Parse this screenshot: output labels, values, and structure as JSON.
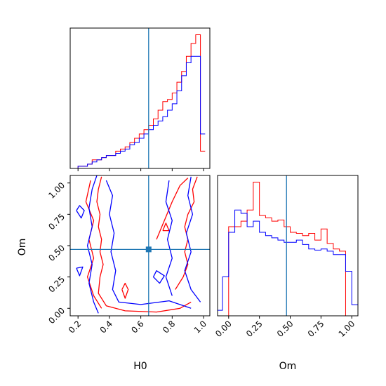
{
  "chart_data": [
    {
      "type": "histogram",
      "panel": "H0 marginal",
      "xlim": [
        0.15,
        1.04
      ],
      "truth_line": 0.65,
      "series": [
        {
          "color": "#ff0000",
          "edges": [
            0.08,
            0.11,
            0.14,
            0.17,
            0.2,
            0.23,
            0.26,
            0.29,
            0.32,
            0.35,
            0.38,
            0.41,
            0.44,
            0.47,
            0.5,
            0.53,
            0.56,
            0.59,
            0.62,
            0.65,
            0.68,
            0.71,
            0.74,
            0.77,
            0.8,
            0.83,
            0.86,
            0.89,
            0.92,
            0.95,
            0.98,
            1.01
          ],
          "values": [
            0,
            0,
            0,
            0,
            1,
            1,
            2,
            4,
            4,
            5,
            6,
            6,
            8,
            9,
            10,
            12,
            14,
            16,
            18,
            20,
            23,
            27,
            31,
            32,
            35,
            40,
            45,
            52,
            58,
            62,
            8
          ]
        },
        {
          "color": "#0000ff",
          "edges": [
            0.08,
            0.11,
            0.14,
            0.17,
            0.2,
            0.23,
            0.26,
            0.29,
            0.32,
            0.35,
            0.38,
            0.41,
            0.44,
            0.47,
            0.5,
            0.53,
            0.56,
            0.59,
            0.62,
            0.65,
            0.68,
            0.71,
            0.74,
            0.77,
            0.8,
            0.83,
            0.86,
            0.89,
            0.92,
            0.95,
            0.98,
            1.01
          ],
          "values": [
            0,
            0,
            0,
            0,
            1,
            1,
            2,
            3,
            4,
            5,
            6,
            6,
            7,
            8,
            9,
            11,
            12,
            14,
            16,
            18,
            20,
            22,
            24,
            27,
            30,
            36,
            43,
            49,
            52,
            52,
            16
          ]
        }
      ]
    },
    {
      "type": "contour",
      "panel": "H0 vs Om joint",
      "xlabel": "H0",
      "ylabel": "Om",
      "xlim": [
        0.15,
        1.04
      ],
      "ylim": [
        -0.06,
        1.06
      ],
      "xticks": [
        "0.2",
        "0.4",
        "0.6",
        "0.8",
        "1.0"
      ],
      "yticks": [
        "0.00",
        "0.25",
        "0.50",
        "0.75",
        "1.00"
      ],
      "truth": [
        0.65,
        0.47
      ],
      "series": [
        {
          "color": "#ff0000",
          "contours": [
            [
              [
                0.35,
                1.05
              ],
              [
                0.33,
                0.95
              ],
              [
                0.32,
                0.85
              ],
              [
                0.34,
                0.75
              ],
              [
                0.33,
                0.65
              ],
              [
                0.35,
                0.55
              ],
              [
                0.34,
                0.45
              ],
              [
                0.36,
                0.35
              ],
              [
                0.34,
                0.25
              ],
              [
                0.33,
                0.12
              ],
              [
                0.38,
                0.02
              ],
              [
                0.5,
                -0.02
              ],
              [
                0.7,
                -0.03
              ],
              [
                0.85,
                0.0
              ],
              [
                0.92,
                0.05
              ]
            ],
            [
              [
                0.96,
                1.05
              ],
              [
                0.93,
                0.95
              ],
              [
                0.94,
                0.85
              ],
              [
                0.9,
                0.75
              ],
              [
                0.88,
                0.65
              ],
              [
                0.9,
                0.55
              ],
              [
                0.88,
                0.45
              ],
              [
                0.9,
                0.35
              ],
              [
                0.87,
                0.25
              ],
              [
                0.82,
                0.15
              ]
            ],
            [
              [
                0.28,
                1.02
              ],
              [
                0.25,
                0.85
              ],
              [
                0.3,
                0.7
              ],
              [
                0.27,
                0.55
              ],
              [
                0.3,
                0.4
              ],
              [
                0.26,
                0.25
              ],
              [
                0.3,
                0.1
              ],
              [
                0.35,
                0.0
              ]
            ],
            [
              [
                0.7,
                0.55
              ],
              [
                0.75,
                0.7
              ],
              [
                0.8,
                0.85
              ],
              [
                0.85,
                0.98
              ],
              [
                0.9,
                1.04
              ]
            ],
            [
              [
                0.48,
                0.15
              ],
              [
                0.5,
                0.08
              ],
              [
                0.52,
                0.15
              ],
              [
                0.5,
                0.2
              ],
              [
                0.48,
                0.15
              ]
            ],
            [
              [
                0.74,
                0.62
              ],
              [
                0.76,
                0.68
              ],
              [
                0.78,
                0.62
              ],
              [
                0.74,
                0.62
              ]
            ]
          ]
        },
        {
          "color": "#0000ff",
          "contours": [
            [
              [
                0.32,
                1.06
              ],
              [
                0.29,
                0.95
              ],
              [
                0.27,
                0.8
              ],
              [
                0.29,
                0.65
              ],
              [
                0.26,
                0.5
              ],
              [
                0.29,
                0.35
              ],
              [
                0.27,
                0.2
              ],
              [
                0.3,
                0.05
              ],
              [
                0.33,
                -0.04
              ]
            ],
            [
              [
                0.38,
                1.02
              ],
              [
                0.42,
                0.9
              ],
              [
                0.4,
                0.75
              ],
              [
                0.43,
                0.6
              ],
              [
                0.41,
                0.45
              ],
              [
                0.44,
                0.3
              ],
              [
                0.42,
                0.15
              ],
              [
                0.46,
                0.05
              ],
              [
                0.6,
                0.03
              ],
              [
                0.78,
                0.06
              ],
              [
                0.92,
                0.0
              ]
            ],
            [
              [
                0.92,
                1.05
              ],
              [
                0.9,
                0.9
              ],
              [
                0.93,
                0.75
              ],
              [
                0.89,
                0.6
              ],
              [
                0.92,
                0.45
              ],
              [
                0.88,
                0.3
              ],
              [
                0.92,
                0.15
              ],
              [
                0.98,
                0.05
              ]
            ],
            [
              [
                0.78,
                1.02
              ],
              [
                0.76,
                0.85
              ],
              [
                0.8,
                0.7
              ],
              [
                0.77,
                0.55
              ],
              [
                0.8,
                0.4
              ],
              [
                0.76,
                0.25
              ],
              [
                0.8,
                0.1
              ]
            ],
            [
              [
                0.19,
                0.78
              ],
              [
                0.22,
                0.72
              ],
              [
                0.24,
                0.78
              ],
              [
                0.21,
                0.82
              ],
              [
                0.19,
                0.78
              ]
            ],
            [
              [
                0.68,
                0.25
              ],
              [
                0.72,
                0.2
              ],
              [
                0.75,
                0.26
              ],
              [
                0.7,
                0.3
              ],
              [
                0.68,
                0.25
              ]
            ],
            [
              [
                0.19,
                0.32
              ],
              [
                0.21,
                0.26
              ],
              [
                0.23,
                0.33
              ],
              [
                0.19,
                0.32
              ]
            ]
          ]
        }
      ]
    },
    {
      "type": "histogram",
      "panel": "Om marginal",
      "xlabel": "Om",
      "xlim": [
        -0.09,
        1.05
      ],
      "xticks": [
        "0.00",
        "0.25",
        "0.50",
        "0.75",
        "1.00"
      ],
      "truth_line": 0.47,
      "series": [
        {
          "color": "#ff0000",
          "edges": [
            -0.1,
            -0.05,
            0.0,
            0.05,
            0.1,
            0.15,
            0.2,
            0.25,
            0.3,
            0.35,
            0.4,
            0.45,
            0.5,
            0.55,
            0.6,
            0.65,
            0.7,
            0.75,
            0.8,
            0.85,
            0.9,
            0.95,
            1.0,
            1.05
          ],
          "values": [
            0,
            0,
            80,
            80,
            85,
            95,
            120,
            90,
            88,
            85,
            86,
            80,
            75,
            74,
            72,
            74,
            68,
            78,
            65,
            60,
            58,
            0,
            0
          ]
        },
        {
          "color": "#0000ff",
          "edges": [
            -0.1,
            -0.05,
            0.0,
            0.05,
            0.1,
            0.15,
            0.2,
            0.25,
            0.3,
            0.35,
            0.4,
            0.45,
            0.5,
            0.55,
            0.6,
            0.65,
            0.7,
            0.75,
            0.8,
            0.85,
            0.9,
            0.95,
            1.0,
            1.05
          ],
          "values": [
            5,
            35,
            75,
            95,
            92,
            80,
            85,
            75,
            72,
            70,
            68,
            66,
            66,
            68,
            64,
            60,
            59,
            60,
            58,
            55,
            55,
            40,
            10
          ]
        }
      ]
    }
  ]
}
